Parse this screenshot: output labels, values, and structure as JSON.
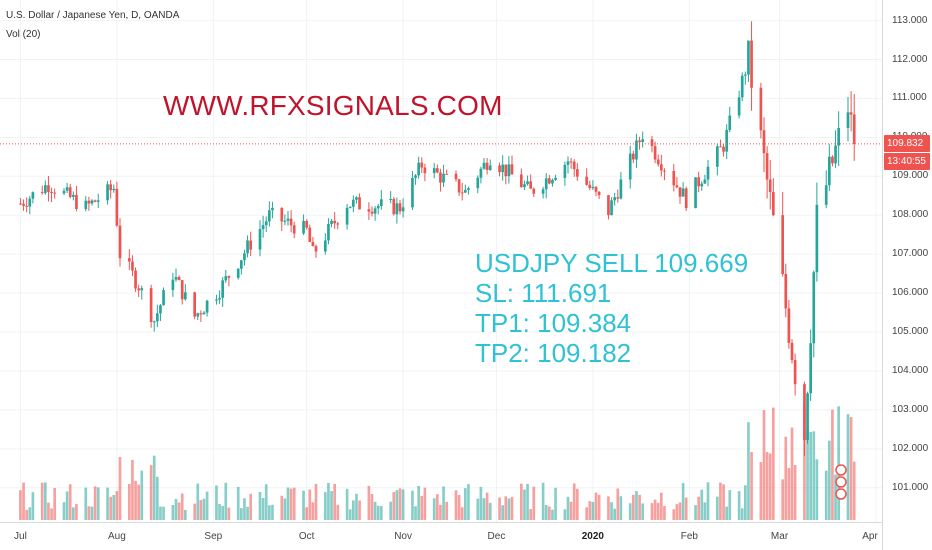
{
  "legend": {
    "title": "U.S. Dollar / Japanese Yen, D, OANDA",
    "volume": "Vol (20)"
  },
  "watermark": "WWW.RFXSIGNALS.COM",
  "signal": {
    "line1": "USDJPY SELL 109.669",
    "line2": "SL: 111.691",
    "line3": "TP1: 109.384",
    "line4": "TP2: 109.182"
  },
  "price_tags": {
    "last_price": "109.832",
    "countdown": "13:40:55"
  },
  "colors": {
    "up": "#26a69a",
    "down": "#ef5350",
    "watermark": "#c0142c",
    "signal_text": "#2fc2d4",
    "price_line": "#ef5350"
  },
  "chart_data": {
    "type": "candlestick",
    "symbol": "U.S. Dollar / Japanese Yen",
    "interval": "D",
    "source": "OANDA",
    "y_axis": {
      "ticks": [
        "101.000",
        "102.000",
        "103.000",
        "104.000",
        "105.000",
        "106.000",
        "107.000",
        "108.000",
        "109.000",
        "110.000",
        "111.000",
        "112.000",
        "113.000"
      ],
      "range": [
        100.3,
        113.4
      ]
    },
    "x_axis": {
      "ticks": [
        "Jul",
        "Aug",
        "Sep",
        "Oct",
        "Nov",
        "Dec",
        "2020",
        "Feb",
        "Mar",
        "Apr"
      ]
    },
    "last_price": 109.832,
    "close_path": [
      {
        "date": "2019-07-01",
        "close": 108.3
      },
      {
        "date": "2019-07-10",
        "close": 108.8
      },
      {
        "date": "2019-07-22",
        "close": 108.2
      },
      {
        "date": "2019-07-31",
        "close": 108.7
      },
      {
        "date": "2019-08-02",
        "close": 107.0
      },
      {
        "date": "2019-08-08",
        "close": 106.2
      },
      {
        "date": "2019-08-13",
        "close": 105.3
      },
      {
        "date": "2019-08-19",
        "close": 106.5
      },
      {
        "date": "2019-08-26",
        "close": 105.4
      },
      {
        "date": "2019-09-03",
        "close": 106.1
      },
      {
        "date": "2019-09-19",
        "close": 108.0
      },
      {
        "date": "2019-10-01",
        "close": 107.6
      },
      {
        "date": "2019-10-03",
        "close": 107.0
      },
      {
        "date": "2019-10-14",
        "close": 108.3
      },
      {
        "date": "2019-10-31",
        "close": 108.2
      },
      {
        "date": "2019-11-07",
        "close": 109.3
      },
      {
        "date": "2019-11-21",
        "close": 108.6
      },
      {
        "date": "2019-11-29",
        "close": 109.5
      },
      {
        "date": "2019-12-12",
        "close": 108.6
      },
      {
        "date": "2019-12-24",
        "close": 109.4
      },
      {
        "date": "2020-01-06",
        "close": 108.1
      },
      {
        "date": "2020-01-17",
        "close": 110.1
      },
      {
        "date": "2020-01-31",
        "close": 108.4
      },
      {
        "date": "2020-02-12",
        "close": 109.8
      },
      {
        "date": "2020-02-20",
        "close": 112.0
      },
      {
        "date": "2020-02-28",
        "close": 107.8
      },
      {
        "date": "2020-03-09",
        "close": 102.4
      },
      {
        "date": "2020-03-13",
        "close": 107.9
      },
      {
        "date": "2020-03-23",
        "close": 110.8
      },
      {
        "date": "2020-03-25",
        "close": 109.832
      }
    ],
    "volume": {
      "spike_period": "2020-02-20 to 2020-03-25"
    }
  }
}
